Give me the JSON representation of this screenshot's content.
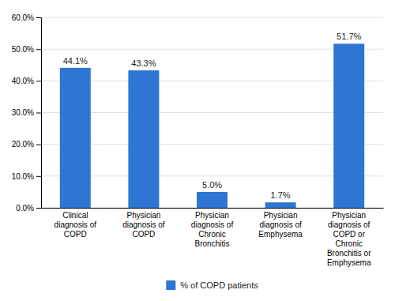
{
  "chart_data": {
    "type": "bar",
    "categories": [
      "Clinical\ndiagnosis of\nCOPD",
      "Physician\ndiagnosis of\nCOPD",
      "Physician\ndiagnosis of\nChronic\nBronchitis",
      "Physician\ndiagnosis of\nEmphysema",
      "Physician\ndiagnosis of\nCOPD or\nChronic\nBronchitis or\nEmphysema"
    ],
    "series": [
      {
        "name": "% of COPD patients",
        "color": "#2E75D4",
        "values": [
          44.1,
          43.3,
          5.0,
          1.7,
          51.7
        ],
        "value_labels": [
          "44.1%",
          "43.3%",
          "5.0%",
          "1.7%",
          "51.7%"
        ]
      }
    ],
    "ylim": [
      0,
      60
    ],
    "yticks": [
      {
        "value": 0,
        "label": "0.0%"
      },
      {
        "value": 10,
        "label": "10.0%"
      },
      {
        "value": 20,
        "label": "20.0%"
      },
      {
        "value": 30,
        "label": "30.0%"
      },
      {
        "value": 40,
        "label": "40.0%"
      },
      {
        "value": 50,
        "label": "50.0%"
      },
      {
        "value": 60,
        "label": "60.0%"
      }
    ],
    "grid": true,
    "data_labels": true,
    "legend": "bottom"
  }
}
